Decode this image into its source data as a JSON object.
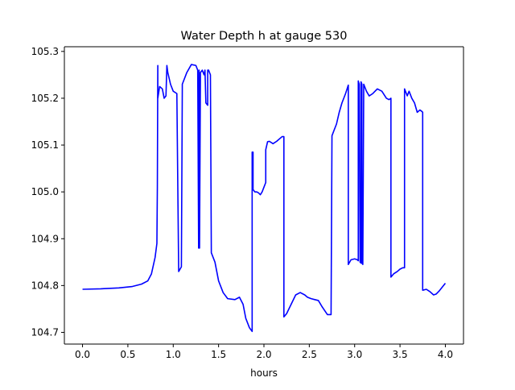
{
  "chart_data": {
    "type": "line",
    "title": "Water Depth h at gauge 530",
    "xlabel": "hours",
    "ylabel": "",
    "xlim": [
      -0.2,
      4.2
    ],
    "ylim": [
      104.675,
      105.31
    ],
    "xticks": [
      0.0,
      0.5,
      1.0,
      1.5,
      2.0,
      2.5,
      3.0,
      3.5,
      4.0
    ],
    "xtick_labels": [
      "0.0",
      "0.5",
      "1.0",
      "1.5",
      "2.0",
      "2.5",
      "3.0",
      "3.5",
      "4.0"
    ],
    "yticks": [
      104.7,
      104.8,
      104.9,
      105.0,
      105.1,
      105.2,
      105.3
    ],
    "ytick_labels": [
      "104.7",
      "104.8",
      "104.9",
      "105.0",
      "105.1",
      "105.2",
      "105.3"
    ],
    "grid": false,
    "series_color": "#0000ff",
    "series": [
      {
        "x": [
          0.0,
          0.2,
          0.4,
          0.55,
          0.65,
          0.72,
          0.76,
          0.8,
          0.82,
          0.825,
          0.83,
          0.83,
          0.85,
          0.88,
          0.9,
          0.92,
          0.93,
          0.94,
          0.97,
          1.0,
          1.04,
          1.06,
          1.06,
          1.09,
          1.1,
          1.1,
          1.15,
          1.2,
          1.25,
          1.27,
          1.28,
          1.285,
          1.29,
          1.3,
          1.32,
          1.34,
          1.35,
          1.36,
          1.38,
          1.38,
          1.39,
          1.41,
          1.42,
          1.42,
          1.46,
          1.5,
          1.55,
          1.6,
          1.68,
          1.73,
          1.77,
          1.8,
          1.84,
          1.87,
          1.87,
          1.88,
          1.88,
          1.9,
          1.92,
          1.94,
          1.96,
          1.98,
          2.0,
          2.02,
          2.02,
          2.04,
          2.06,
          2.1,
          2.14,
          2.2,
          2.22,
          2.22,
          2.25,
          2.3,
          2.35,
          2.4,
          2.45,
          2.48,
          2.52,
          2.56,
          2.6,
          2.64,
          2.7,
          2.74,
          2.75,
          2.75,
          2.77,
          2.8,
          2.83,
          2.86,
          2.9,
          2.93,
          2.93,
          2.96,
          3.0,
          3.03,
          3.04,
          3.04,
          3.05,
          3.06,
          3.07,
          3.07,
          3.08,
          3.08,
          3.09,
          3.1,
          3.1,
          3.13,
          3.16,
          3.2,
          3.25,
          3.3,
          3.35,
          3.38,
          3.4,
          3.4,
          3.43,
          3.47,
          3.5,
          3.53,
          3.55,
          3.55,
          3.58,
          3.6,
          3.63,
          3.66,
          3.69,
          3.72,
          3.74,
          3.75,
          3.75,
          3.79,
          3.83,
          3.87,
          3.9,
          3.93,
          4.0
        ],
        "y": [
          104.792,
          104.793,
          104.795,
          104.798,
          104.803,
          104.81,
          104.825,
          104.86,
          104.89,
          105.01,
          105.27,
          105.2,
          105.225,
          105.22,
          105.2,
          105.205,
          105.27,
          105.255,
          105.23,
          105.215,
          105.21,
          104.83,
          104.83,
          104.84,
          105.22,
          105.23,
          105.255,
          105.272,
          105.27,
          105.26,
          104.88,
          105.26,
          104.88,
          105.255,
          105.26,
          105.25,
          105.26,
          105.19,
          105.185,
          105.26,
          105.26,
          105.25,
          104.87,
          104.87,
          104.85,
          104.81,
          104.785,
          104.772,
          104.77,
          104.775,
          104.76,
          104.73,
          104.71,
          104.702,
          105.085,
          105.085,
          105.005,
          105.0,
          105.0,
          104.998,
          104.994,
          105.0,
          105.01,
          105.02,
          105.09,
          105.107,
          105.108,
          105.103,
          105.108,
          105.118,
          105.118,
          104.733,
          104.74,
          104.76,
          104.78,
          104.785,
          104.78,
          104.775,
          104.772,
          104.77,
          104.768,
          104.755,
          104.738,
          104.738,
          105.12,
          105.12,
          105.13,
          105.145,
          105.17,
          105.19,
          105.21,
          105.228,
          104.845,
          104.855,
          104.857,
          104.855,
          104.853,
          105.237,
          105.23,
          104.85,
          104.848,
          105.235,
          105.23,
          104.848,
          104.845,
          105.225,
          105.23,
          105.215,
          105.205,
          105.21,
          105.22,
          105.215,
          105.2,
          105.197,
          105.2,
          104.818,
          104.825,
          104.83,
          104.835,
          104.838,
          104.838,
          105.22,
          105.205,
          105.215,
          105.2,
          105.19,
          105.17,
          105.175,
          105.172,
          105.17,
          104.79,
          104.792,
          104.787,
          104.78,
          104.782,
          104.788,
          104.805
        ]
      }
    ]
  }
}
